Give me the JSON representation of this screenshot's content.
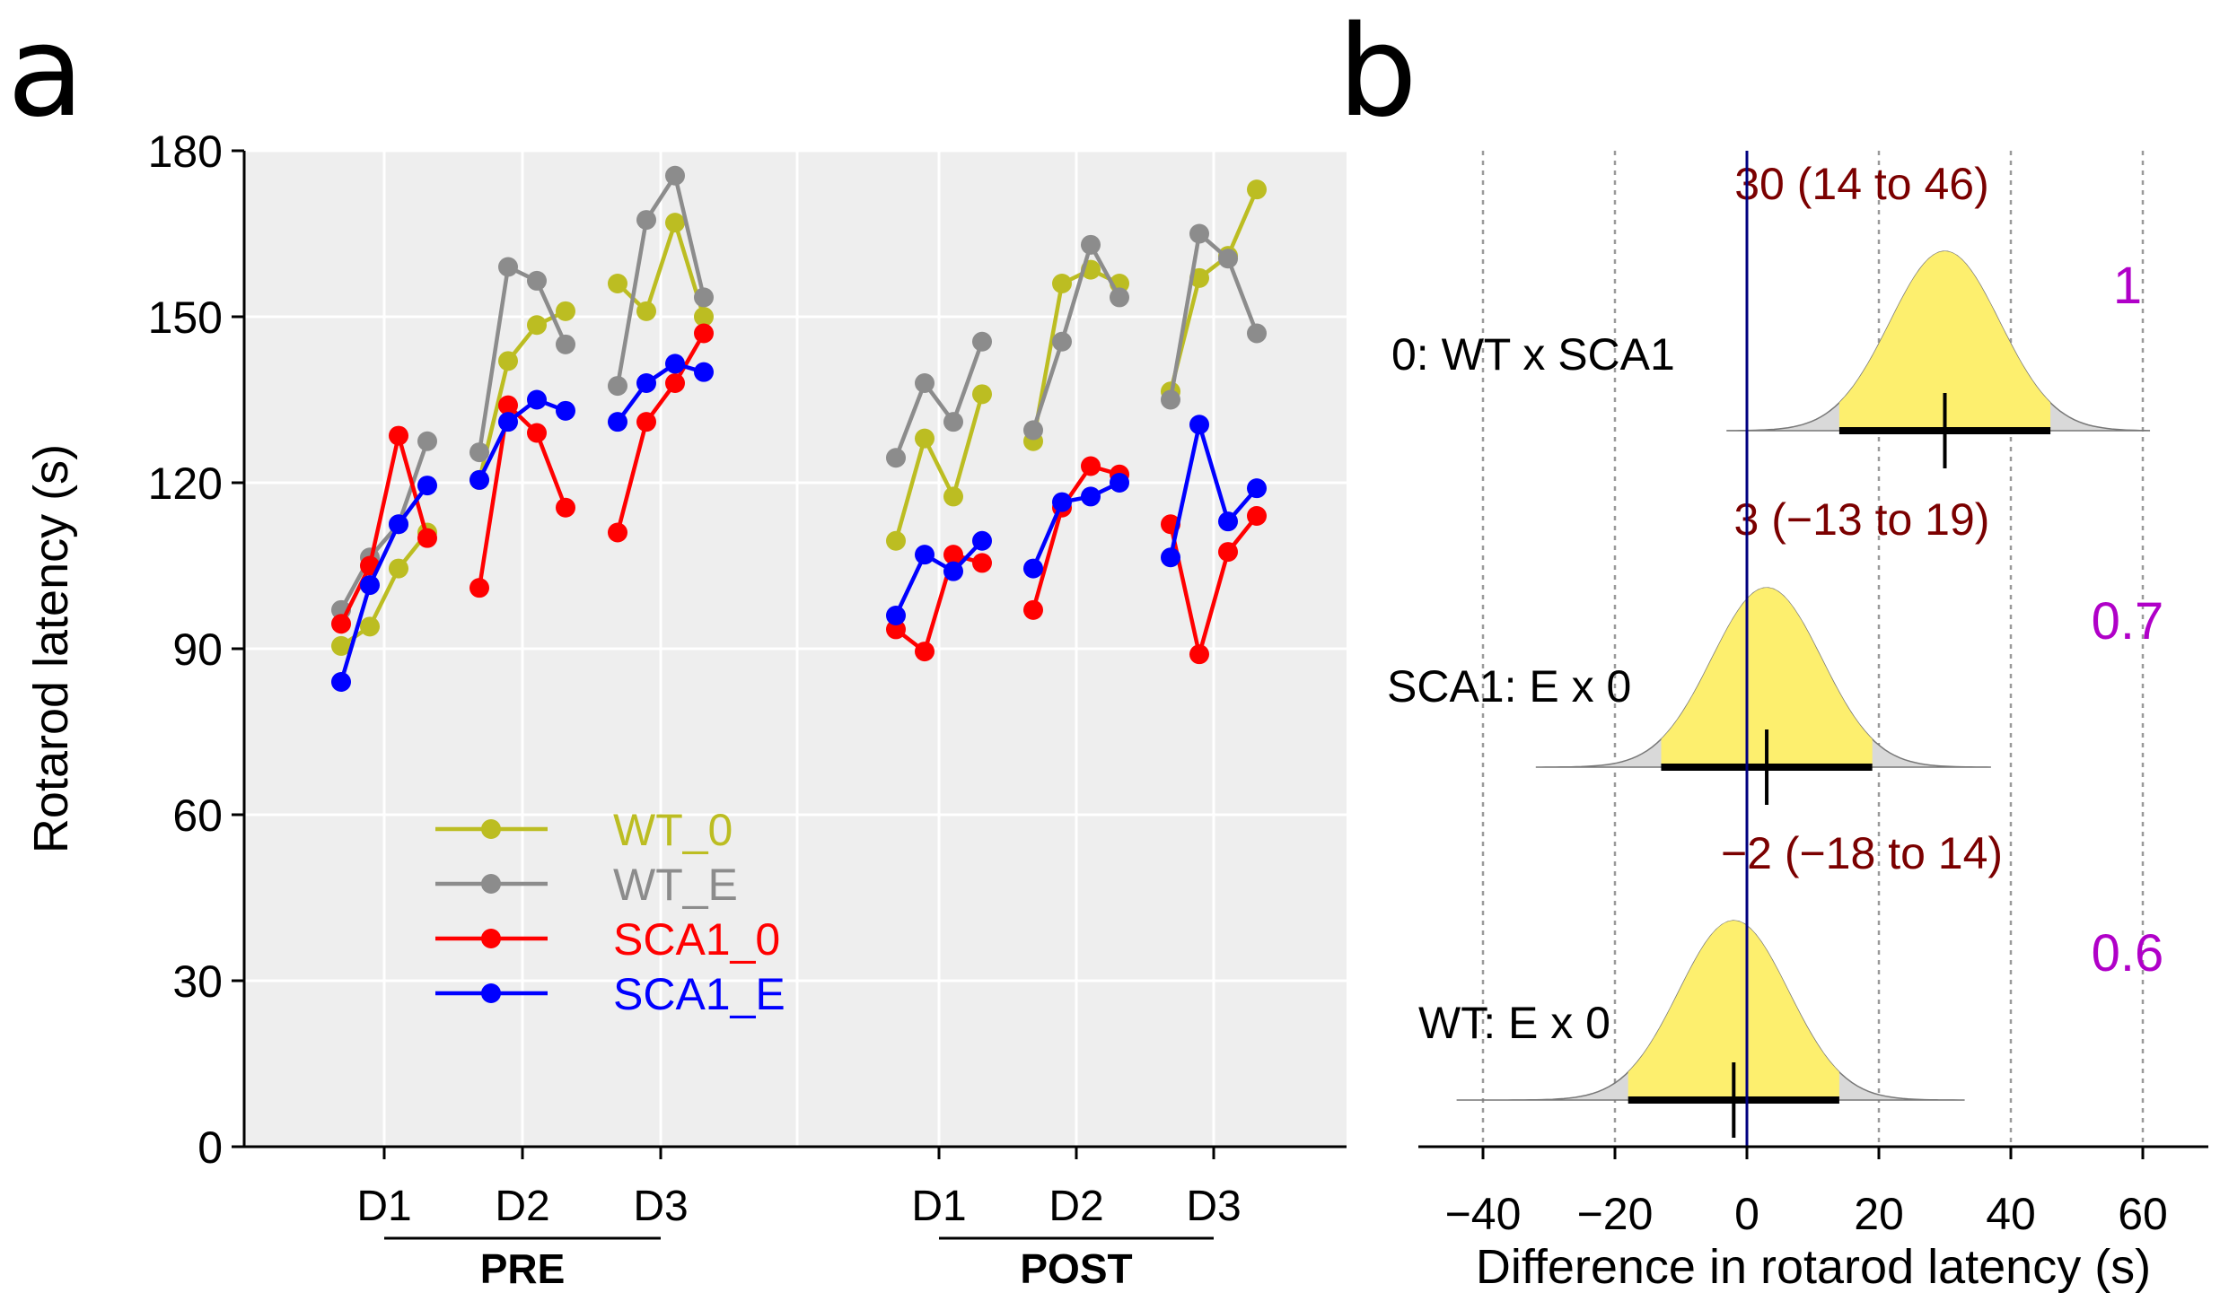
{
  "panel_labels": {
    "a": "a",
    "b": "b"
  },
  "colors": {
    "WT_0": "#bcbd22",
    "WT_E": "#8c8c8c",
    "SCA1_0": "#ff0000",
    "SCA1_E": "#0000ff",
    "plot_bg": "#eeeeee",
    "density_fill": "#fdef6e",
    "density_tail": "#d9d9d9",
    "estimate_text": "#7b0000",
    "prob_text": "#b000c8",
    "zero_line": "#000080"
  },
  "chart_data": [
    {
      "type": "line",
      "panel": "a",
      "title": "",
      "xlabel": "",
      "ylabel": "Rotarod latency (s)",
      "ylim": [
        0,
        180
      ],
      "yticks": [
        0,
        30,
        60,
        90,
        120,
        150,
        180
      ],
      "grid": true,
      "legend_position": "lower-left",
      "phases": [
        {
          "label": "PRE",
          "days": [
            "D1",
            "D2",
            "D3"
          ]
        },
        {
          "label": "POST",
          "days": [
            "D1",
            "D2",
            "D3"
          ]
        }
      ],
      "points_per_day": 4,
      "series": [
        {
          "name": "WT_0",
          "color_key": "WT_0",
          "values": [
            [
              [
                90.5,
                94,
                104.5,
                111
              ],
              [
                120.5,
                142,
                148.5,
                151
              ],
              [
                156,
                151,
                167,
                150
              ]
            ],
            [
              [
                109.5,
                128,
                117.5,
                136
              ],
              [
                127.5,
                156,
                158.5,
                156
              ],
              [
                136.5,
                157,
                161,
                173
              ]
            ]
          ]
        },
        {
          "name": "WT_E",
          "color_key": "WT_E",
          "values": [
            [
              [
                97,
                106.5,
                112.5,
                127.5
              ],
              [
                125.5,
                159,
                156.5,
                145
              ],
              [
                137.5,
                167.5,
                175.5,
                153.5
              ]
            ],
            [
              [
                124.5,
                138,
                131,
                145.5
              ],
              [
                129.5,
                145.5,
                163,
                153.5
              ],
              [
                135,
                165,
                160.5,
                147
              ]
            ]
          ]
        },
        {
          "name": "SCA1_0",
          "color_key": "SCA1_0",
          "values": [
            [
              [
                94.5,
                105,
                128.5,
                110
              ],
              [
                101,
                134,
                129,
                115.5
              ],
              [
                111,
                131,
                138,
                147
              ]
            ],
            [
              [
                93.5,
                89.5,
                107,
                105.5
              ],
              [
                97,
                115.5,
                123,
                121.5
              ],
              [
                112.5,
                89,
                107.5,
                114
              ]
            ]
          ]
        },
        {
          "name": "SCA1_E",
          "color_key": "SCA1_E",
          "values": [
            [
              [
                84,
                101.5,
                112.5,
                119.5
              ],
              [
                120.5,
                131,
                135,
                133
              ],
              [
                131,
                138,
                141.5,
                140
              ]
            ],
            [
              [
                96,
                107,
                104,
                109.5
              ],
              [
                104.5,
                116.5,
                117.5,
                120
              ],
              [
                106.5,
                130.5,
                113,
                119
              ]
            ]
          ]
        }
      ]
    },
    {
      "type": "density",
      "panel": "b",
      "title": "",
      "xlabel": "Difference in rotarod latency (s)",
      "ylabel": "",
      "xlim": [
        -50,
        70
      ],
      "xticks": [
        -40,
        -20,
        0,
        20,
        40,
        60
      ],
      "xtick_labels": [
        "−40",
        "−20",
        "0",
        "20",
        "40",
        "60"
      ],
      "grid": true,
      "rows": [
        {
          "label": "0: WT x SCA1",
          "mean": 30,
          "ci_low": 14,
          "ci_high": 46,
          "sd": 8.3,
          "tail_low": -3,
          "tail_high": 61,
          "estimate_text": "30 (14 to 46)",
          "probability": "1"
        },
        {
          "label": "SCA1: E x 0",
          "mean": 3,
          "ci_low": -13,
          "ci_high": 19,
          "sd": 8.3,
          "tail_low": -32,
          "tail_high": 37,
          "estimate_text": "3 (−13 to 19)",
          "probability": "0.7"
        },
        {
          "label": "WT: E x 0",
          "mean": -2,
          "ci_low": -18,
          "ci_high": 14,
          "sd": 8.3,
          "tail_low": -44,
          "tail_high": 33,
          "estimate_text": "−2 (−18 to 14)",
          "probability": "0.6"
        }
      ]
    }
  ]
}
